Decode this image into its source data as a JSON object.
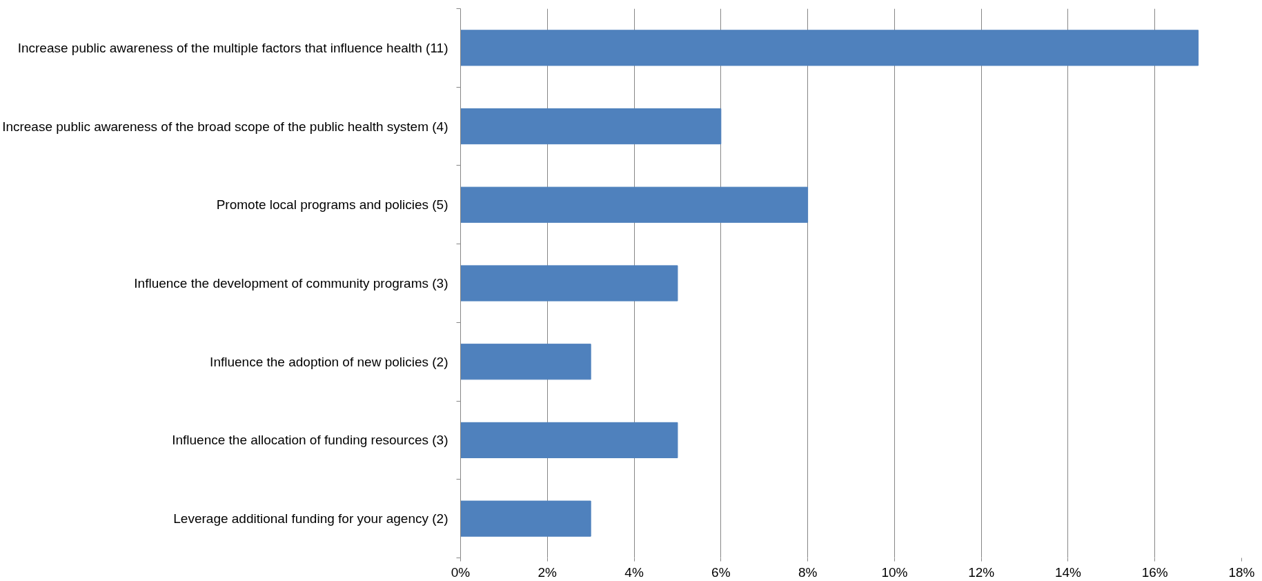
{
  "chart_data": {
    "type": "bar",
    "orientation": "horizontal",
    "categories": [
      "Increase public awareness of the multiple factors that influence health (11)",
      "Increase public awareness of the broad scope of the public health system (4)",
      "Promote local programs and policies (5)",
      "Influence the development of community programs (3)",
      "Influence the adoption of new policies (2)",
      "Influence the allocation of funding resources (3)",
      "Leverage additional funding for your agency (2)"
    ],
    "values": [
      17,
      6,
      8,
      5,
      3,
      5,
      3
    ],
    "color": "#4f81bd",
    "xlim": [
      0,
      18
    ],
    "xticks": [
      {
        "value": 0,
        "label": "0%"
      },
      {
        "value": 2,
        "label": "2%"
      },
      {
        "value": 4,
        "label": "4%"
      },
      {
        "value": 6,
        "label": "6%"
      },
      {
        "value": 8,
        "label": "8%"
      },
      {
        "value": 10,
        "label": "10%"
      },
      {
        "value": 12,
        "label": "12%"
      },
      {
        "value": 14,
        "label": "14%"
      },
      {
        "value": 16,
        "label": "16%"
      },
      {
        "value": 18,
        "label": "18%"
      }
    ],
    "grid": "x"
  }
}
